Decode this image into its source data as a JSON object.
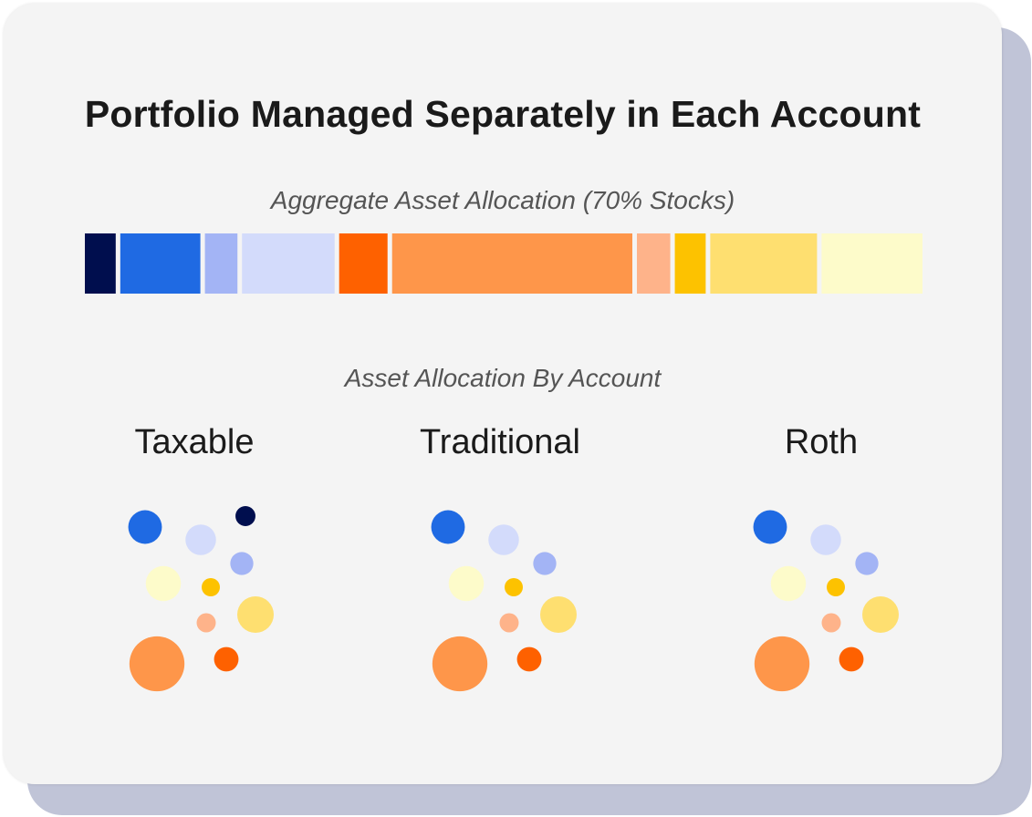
{
  "title": "Portfolio Managed Separately in Each Account",
  "aggregate_label": "Aggregate Asset Allocation (70% Stocks)",
  "by_account_label": "Asset Allocation By Account",
  "colors": {
    "navy": "#000e4e",
    "blue": "#1f6ae3",
    "periwinkle": "#a3b4f5",
    "lavender": "#d3dbfb",
    "orange_dark": "#fe6100",
    "orange": "#fe964a",
    "peach": "#feb38a",
    "gold": "#fdc200",
    "yellow": "#fedf70",
    "cream": "#fdfbca"
  },
  "chart_data": {
    "type": "bar",
    "aggregate_segments": [
      {
        "color": "navy",
        "value": 3.7
      },
      {
        "color": "blue",
        "value": 9.6
      },
      {
        "color": "periwinkle",
        "value": 3.9
      },
      {
        "color": "lavender",
        "value": 11.1
      },
      {
        "color": "orange_dark",
        "value": 5.8
      },
      {
        "color": "orange",
        "value": 28.8
      },
      {
        "color": "peach",
        "value": 4.0
      },
      {
        "color": "gold",
        "value": 3.7
      },
      {
        "color": "yellow",
        "value": 12.8
      },
      {
        "color": "cream",
        "value": 12.1
      }
    ],
    "accounts": [
      {
        "name": "Taxable",
        "bubbles": [
          {
            "color": "navy",
            "value": 1.2
          },
          {
            "color": "blue",
            "value": 3.4
          },
          {
            "color": "lavender",
            "value": 2.8
          },
          {
            "color": "periwinkle",
            "value": 1.6
          },
          {
            "color": "cream",
            "value": 3.7
          },
          {
            "color": "gold",
            "value": 1.0
          },
          {
            "color": "yellow",
            "value": 4.0
          },
          {
            "color": "peach",
            "value": 1.1
          },
          {
            "color": "orange",
            "value": 9.1
          },
          {
            "color": "orange_dark",
            "value": 1.8
          }
        ]
      },
      {
        "name": "Traditional",
        "bubbles": [
          {
            "color": "blue",
            "value": 3.4
          },
          {
            "color": "lavender",
            "value": 2.8
          },
          {
            "color": "periwinkle",
            "value": 1.6
          },
          {
            "color": "cream",
            "value": 3.7
          },
          {
            "color": "gold",
            "value": 1.0
          },
          {
            "color": "yellow",
            "value": 4.0
          },
          {
            "color": "peach",
            "value": 1.1
          },
          {
            "color": "orange",
            "value": 9.1
          },
          {
            "color": "orange_dark",
            "value": 1.8
          }
        ]
      },
      {
        "name": "Roth",
        "bubbles": [
          {
            "color": "blue",
            "value": 3.4
          },
          {
            "color": "lavender",
            "value": 2.8
          },
          {
            "color": "periwinkle",
            "value": 1.6
          },
          {
            "color": "cream",
            "value": 3.7
          },
          {
            "color": "gold",
            "value": 1.0
          },
          {
            "color": "yellow",
            "value": 4.0
          },
          {
            "color": "peach",
            "value": 1.1
          },
          {
            "color": "orange",
            "value": 9.1
          },
          {
            "color": "orange_dark",
            "value": 1.8
          }
        ]
      }
    ]
  }
}
